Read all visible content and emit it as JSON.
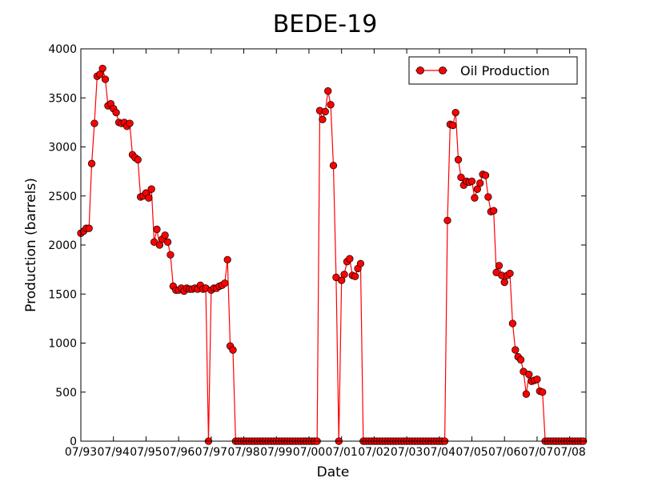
{
  "chart_data": {
    "type": "line",
    "title": "BEDE-19",
    "xlabel": "Date",
    "ylabel": "Production (barrels)",
    "x_ticks": [
      "07/93",
      "07/94",
      "07/95",
      "07/96",
      "07/97",
      "07/98",
      "07/99",
      "07/00",
      "07/01",
      "07/02",
      "07/03",
      "07/04",
      "07/05",
      "07/06",
      "07/07",
      "07/08"
    ],
    "x_range": [
      "1993-07",
      "2009-01"
    ],
    "ylim": [
      0,
      4000
    ],
    "y_ticks": [
      0,
      500,
      1000,
      1500,
      2000,
      2500,
      3000,
      3500,
      4000
    ],
    "grid": false,
    "legend_position": "top-right",
    "series": [
      {
        "name": "Oil Production",
        "color": "#ff0000",
        "marker": "circle",
        "points": [
          [
            "1993-07",
            2120
          ],
          [
            "1993-08",
            2140
          ],
          [
            "1993-09",
            2170
          ],
          [
            "1993-10",
            2170
          ],
          [
            "1993-11",
            2830
          ],
          [
            "1993-12",
            3240
          ],
          [
            "1994-01",
            3720
          ],
          [
            "1994-02",
            3740
          ],
          [
            "1994-03",
            3800
          ],
          [
            "1994-04",
            3690
          ],
          [
            "1994-05",
            3420
          ],
          [
            "1994-06",
            3440
          ],
          [
            "1994-07",
            3390
          ],
          [
            "1994-08",
            3350
          ],
          [
            "1994-09",
            3250
          ],
          [
            "1994-10",
            3240
          ],
          [
            "1994-11",
            3250
          ],
          [
            "1994-12",
            3210
          ],
          [
            "1995-01",
            3240
          ],
          [
            "1995-02",
            2920
          ],
          [
            "1995-03",
            2890
          ],
          [
            "1995-04",
            2870
          ],
          [
            "1995-05",
            2490
          ],
          [
            "1995-06",
            2500
          ],
          [
            "1995-07",
            2530
          ],
          [
            "1995-08",
            2480
          ],
          [
            "1995-09",
            2570
          ],
          [
            "1995-10",
            2030
          ],
          [
            "1995-11",
            2160
          ],
          [
            "1995-12",
            2000
          ],
          [
            "1996-01",
            2060
          ],
          [
            "1996-02",
            2100
          ],
          [
            "1996-03",
            2030
          ],
          [
            "1996-04",
            1900
          ],
          [
            "1996-05",
            1580
          ],
          [
            "1996-06",
            1540
          ],
          [
            "1996-07",
            1540
          ],
          [
            "1996-08",
            1560
          ],
          [
            "1996-09",
            1530
          ],
          [
            "1996-10",
            1560
          ],
          [
            "1996-11",
            1550
          ],
          [
            "1996-12",
            1550
          ],
          [
            "1997-01",
            1560
          ],
          [
            "1997-02",
            1550
          ],
          [
            "1997-03",
            1590
          ],
          [
            "1997-04",
            1550
          ],
          [
            "1997-05",
            1560
          ],
          [
            "1997-06",
            0
          ],
          [
            "1997-07",
            1540
          ],
          [
            "1997-08",
            1560
          ],
          [
            "1997-09",
            1560
          ],
          [
            "1997-10",
            1580
          ],
          [
            "1997-11",
            1590
          ],
          [
            "1997-12",
            1610
          ],
          [
            "1998-01",
            1850
          ],
          [
            "1998-02",
            970
          ],
          [
            "1998-03",
            930
          ],
          [
            "1998-04",
            0
          ],
          [
            "1998-05",
            0
          ],
          [
            "1998-06",
            0
          ],
          [
            "1998-07",
            0
          ],
          [
            "1998-08",
            0
          ],
          [
            "1998-09",
            0
          ],
          [
            "1998-10",
            0
          ],
          [
            "1998-11",
            0
          ],
          [
            "1998-12",
            0
          ],
          [
            "1999-01",
            0
          ],
          [
            "1999-02",
            0
          ],
          [
            "1999-03",
            0
          ],
          [
            "1999-04",
            0
          ],
          [
            "1999-05",
            0
          ],
          [
            "1999-06",
            0
          ],
          [
            "1999-07",
            0
          ],
          [
            "1999-08",
            0
          ],
          [
            "1999-09",
            0
          ],
          [
            "1999-10",
            0
          ],
          [
            "1999-11",
            0
          ],
          [
            "1999-12",
            0
          ],
          [
            "2000-01",
            0
          ],
          [
            "2000-02",
            0
          ],
          [
            "2000-03",
            0
          ],
          [
            "2000-04",
            0
          ],
          [
            "2000-05",
            0
          ],
          [
            "2000-06",
            0
          ],
          [
            "2000-07",
            0
          ],
          [
            "2000-08",
            0
          ],
          [
            "2000-09",
            0
          ],
          [
            "2000-10",
            0
          ],
          [
            "2000-11",
            3370
          ],
          [
            "2000-12",
            3280
          ],
          [
            "2001-01",
            3360
          ],
          [
            "2001-02",
            3570
          ],
          [
            "2001-03",
            3430
          ],
          [
            "2001-04",
            2810
          ],
          [
            "2001-05",
            1670
          ],
          [
            "2001-06",
            0
          ],
          [
            "2001-07",
            1640
          ],
          [
            "2001-08",
            1700
          ],
          [
            "2001-09",
            1830
          ],
          [
            "2001-10",
            1860
          ],
          [
            "2001-11",
            1690
          ],
          [
            "2001-12",
            1680
          ],
          [
            "2002-01",
            1760
          ],
          [
            "2002-02",
            1810
          ],
          [
            "2002-03",
            0
          ],
          [
            "2002-04",
            0
          ],
          [
            "2002-05",
            0
          ],
          [
            "2002-06",
            0
          ],
          [
            "2002-07",
            0
          ],
          [
            "2002-08",
            0
          ],
          [
            "2002-09",
            0
          ],
          [
            "2002-10",
            0
          ],
          [
            "2002-11",
            0
          ],
          [
            "2002-12",
            0
          ],
          [
            "2003-01",
            0
          ],
          [
            "2003-02",
            0
          ],
          [
            "2003-03",
            0
          ],
          [
            "2003-04",
            0
          ],
          [
            "2003-05",
            0
          ],
          [
            "2003-06",
            0
          ],
          [
            "2003-07",
            0
          ],
          [
            "2003-08",
            0
          ],
          [
            "2003-09",
            0
          ],
          [
            "2003-10",
            0
          ],
          [
            "2003-11",
            0
          ],
          [
            "2003-12",
            0
          ],
          [
            "2004-01",
            0
          ],
          [
            "2004-02",
            0
          ],
          [
            "2004-03",
            0
          ],
          [
            "2004-04",
            0
          ],
          [
            "2004-05",
            0
          ],
          [
            "2004-06",
            0
          ],
          [
            "2004-07",
            0
          ],
          [
            "2004-08",
            0
          ],
          [
            "2004-09",
            0
          ],
          [
            "2004-10",
            2250
          ],
          [
            "2004-11",
            3230
          ],
          [
            "2004-12",
            3220
          ],
          [
            "2005-01",
            3350
          ],
          [
            "2005-02",
            2870
          ],
          [
            "2005-03",
            2690
          ],
          [
            "2005-04",
            2610
          ],
          [
            "2005-05",
            2650
          ],
          [
            "2005-06",
            2640
          ],
          [
            "2005-07",
            2650
          ],
          [
            "2005-08",
            2480
          ],
          [
            "2005-09",
            2570
          ],
          [
            "2005-10",
            2630
          ],
          [
            "2005-11",
            2720
          ],
          [
            "2005-12",
            2710
          ],
          [
            "2006-01",
            2490
          ],
          [
            "2006-02",
            2340
          ],
          [
            "2006-03",
            2350
          ],
          [
            "2006-04",
            1720
          ],
          [
            "2006-05",
            1790
          ],
          [
            "2006-06",
            1690
          ],
          [
            "2006-07",
            1620
          ],
          [
            "2006-08",
            1690
          ],
          [
            "2006-09",
            1710
          ],
          [
            "2006-10",
            1200
          ],
          [
            "2006-11",
            930
          ],
          [
            "2006-12",
            860
          ],
          [
            "2007-01",
            830
          ],
          [
            "2007-02",
            710
          ],
          [
            "2007-03",
            480
          ],
          [
            "2007-04",
            680
          ],
          [
            "2007-05",
            610
          ],
          [
            "2007-06",
            620
          ],
          [
            "2007-07",
            630
          ],
          [
            "2007-08",
            510
          ],
          [
            "2007-09",
            500
          ],
          [
            "2007-10",
            0
          ],
          [
            "2007-11",
            0
          ],
          [
            "2007-12",
            0
          ],
          [
            "2008-01",
            0
          ],
          [
            "2008-02",
            0
          ],
          [
            "2008-03",
            0
          ],
          [
            "2008-04",
            0
          ],
          [
            "2008-05",
            0
          ],
          [
            "2008-06",
            0
          ],
          [
            "2008-07",
            0
          ],
          [
            "2008-08",
            0
          ],
          [
            "2008-09",
            0
          ],
          [
            "2008-10",
            0
          ],
          [
            "2008-11",
            0
          ],
          [
            "2008-12",
            0
          ]
        ]
      }
    ]
  }
}
